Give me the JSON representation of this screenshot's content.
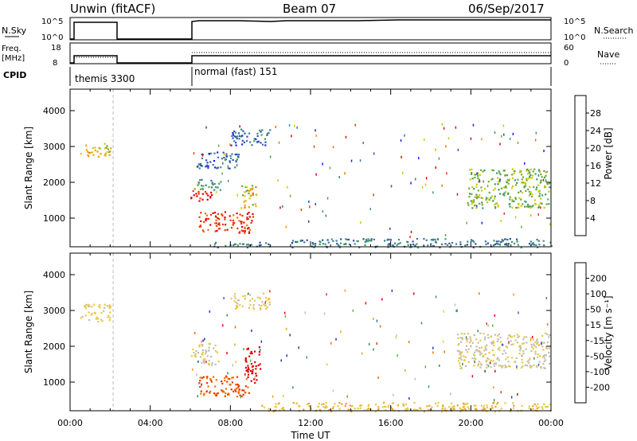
{
  "header": {
    "station": "Unwin (fitACF)",
    "beam": "Beam 07",
    "date": "06/Sep/2017"
  },
  "summary_panels": {
    "nsky": {
      "label": "N.Sky",
      "ticks": [
        "10^5",
        "10^0"
      ],
      "right_label": "N.Search"
    },
    "freq": {
      "label_line1": "Freq.",
      "label_line2": "[MHz]",
      "ticks_left": [
        "18",
        "8"
      ],
      "ticks_right": [
        "60",
        "0"
      ],
      "right_label": "Nave"
    },
    "cpid": {
      "label": "CPID",
      "segments": [
        "themis 3300",
        "normal (fast) 151"
      ]
    }
  },
  "time_axis": {
    "label": "Time UT",
    "ticks": [
      "00:00",
      "04:00",
      "08:00",
      "12:00",
      "16:00",
      "20:00",
      "00:00"
    ]
  },
  "colorbars": {
    "power": {
      "label": "Power [dB]",
      "ticks": [
        "4",
        "8",
        "12",
        "16",
        "20",
        "24",
        "28"
      ],
      "colors": [
        "#1a1aff",
        "#2f4fa8",
        "#3b7a9a",
        "#3f9a6a",
        "#6aaa3a",
        "#d4c800",
        "#f5a000",
        "#f07000",
        "#e83a00",
        "#e00000"
      ]
    },
    "velocity": {
      "label": "Velocity [m s⁻¹]",
      "ticks": [
        "200",
        "100",
        "50",
        "15",
        "-15",
        "-50",
        "-100",
        "-200"
      ],
      "colors": [
        "#2238b0",
        "#2e6ab0",
        "#3a8f60",
        "#55b840",
        "#bdbdbd",
        "#e8c84a",
        "#f0a020",
        "#f07000",
        "#e83800",
        "#e00000"
      ]
    }
  },
  "chart_data": [
    {
      "type": "heatmap",
      "title": "",
      "xlabel": "Time UT",
      "ylabel": "Slant Range [km]",
      "xlim_hours": [
        0,
        24
      ],
      "ylim": [
        200,
        4600
      ],
      "yticks": [
        1000,
        2000,
        3000,
        4000
      ],
      "quantity": "Power [dB]",
      "clim": [
        0,
        30
      ],
      "regions": [
        {
          "t": [
            0.5,
            2.0
          ],
          "r": [
            2700,
            3100
          ],
          "value": 18
        },
        {
          "t": [
            6.0,
            7.2
          ],
          "r": [
            1500,
            1800
          ],
          "value": 28
        },
        {
          "t": [
            6.0,
            7.5
          ],
          "r": [
            1800,
            2100
          ],
          "value": 10
        },
        {
          "t": [
            6.3,
            8.4
          ],
          "r": [
            2400,
            2900
          ],
          "value": 6
        },
        {
          "t": [
            6.4,
            9.1
          ],
          "r": [
            600,
            1200
          ],
          "value": 26
        },
        {
          "t": [
            8.5,
            9.3
          ],
          "r": [
            1300,
            2000
          ],
          "value": 18
        },
        {
          "t": [
            8.0,
            10.0
          ],
          "r": [
            3050,
            3500
          ],
          "value": 6
        },
        {
          "t": [
            7.0,
            10.0
          ],
          "r": [
            200,
            350
          ],
          "value": 8
        },
        {
          "t": [
            11.0,
            24.0
          ],
          "r": [
            200,
            450
          ],
          "value": 8
        },
        {
          "t": [
            19.8,
            23.9
          ],
          "r": [
            1300,
            2400
          ],
          "value": 14
        }
      ]
    },
    {
      "type": "heatmap",
      "title": "",
      "xlabel": "Time UT",
      "ylabel": "Slant Range [km]",
      "xlim_hours": [
        0,
        24
      ],
      "ylim": [
        200,
        4600
      ],
      "yticks": [
        1000,
        2000,
        3000,
        4000
      ],
      "quantity": "Velocity [m s-1]",
      "clim": [
        -250,
        250
      ],
      "regions": [
        {
          "t": [
            0.5,
            2.0
          ],
          "r": [
            2700,
            3200
          ],
          "value": -20
        },
        {
          "t": [
            6.0,
            7.4
          ],
          "r": [
            1500,
            2100
          ],
          "value": 0
        },
        {
          "t": [
            6.4,
            8.9
          ],
          "r": [
            600,
            1200
          ],
          "value": -150
        },
        {
          "t": [
            8.7,
            9.5
          ],
          "r": [
            1000,
            2000
          ],
          "value": -230
        },
        {
          "t": [
            8.0,
            10.0
          ],
          "r": [
            3050,
            3500
          ],
          "value": -20
        },
        {
          "t": [
            9.5,
            24.0
          ],
          "r": [
            200,
            450
          ],
          "value": -40
        },
        {
          "t": [
            19.3,
            23.9
          ],
          "r": [
            1400,
            2400
          ],
          "value": 0
        }
      ]
    }
  ]
}
